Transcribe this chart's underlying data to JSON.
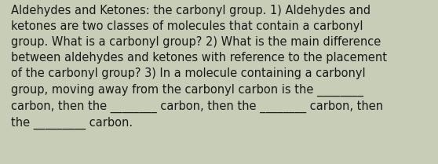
{
  "lines": [
    "Aldehydes and Ketones: the carbonyl group. 1) Aldehydes and",
    "ketones are two classes of molecules that contain a carbonyl",
    "group. What is a carbonyl group? 2) What is the main difference",
    "between aldehydes and ketones with reference to the placement",
    "of the carbonyl group? 3) In a molecule containing a carbonyl",
    "group, moving away from the carbonyl carbon is the ________",
    "carbon, then the ________ carbon, then the ________ carbon, then",
    "the _________ carbon."
  ],
  "background_color": "#c8cdb8",
  "text_color": "#1a1a1a",
  "font_size": 10.5,
  "fig_width": 5.58,
  "fig_height": 2.09,
  "dpi": 100
}
